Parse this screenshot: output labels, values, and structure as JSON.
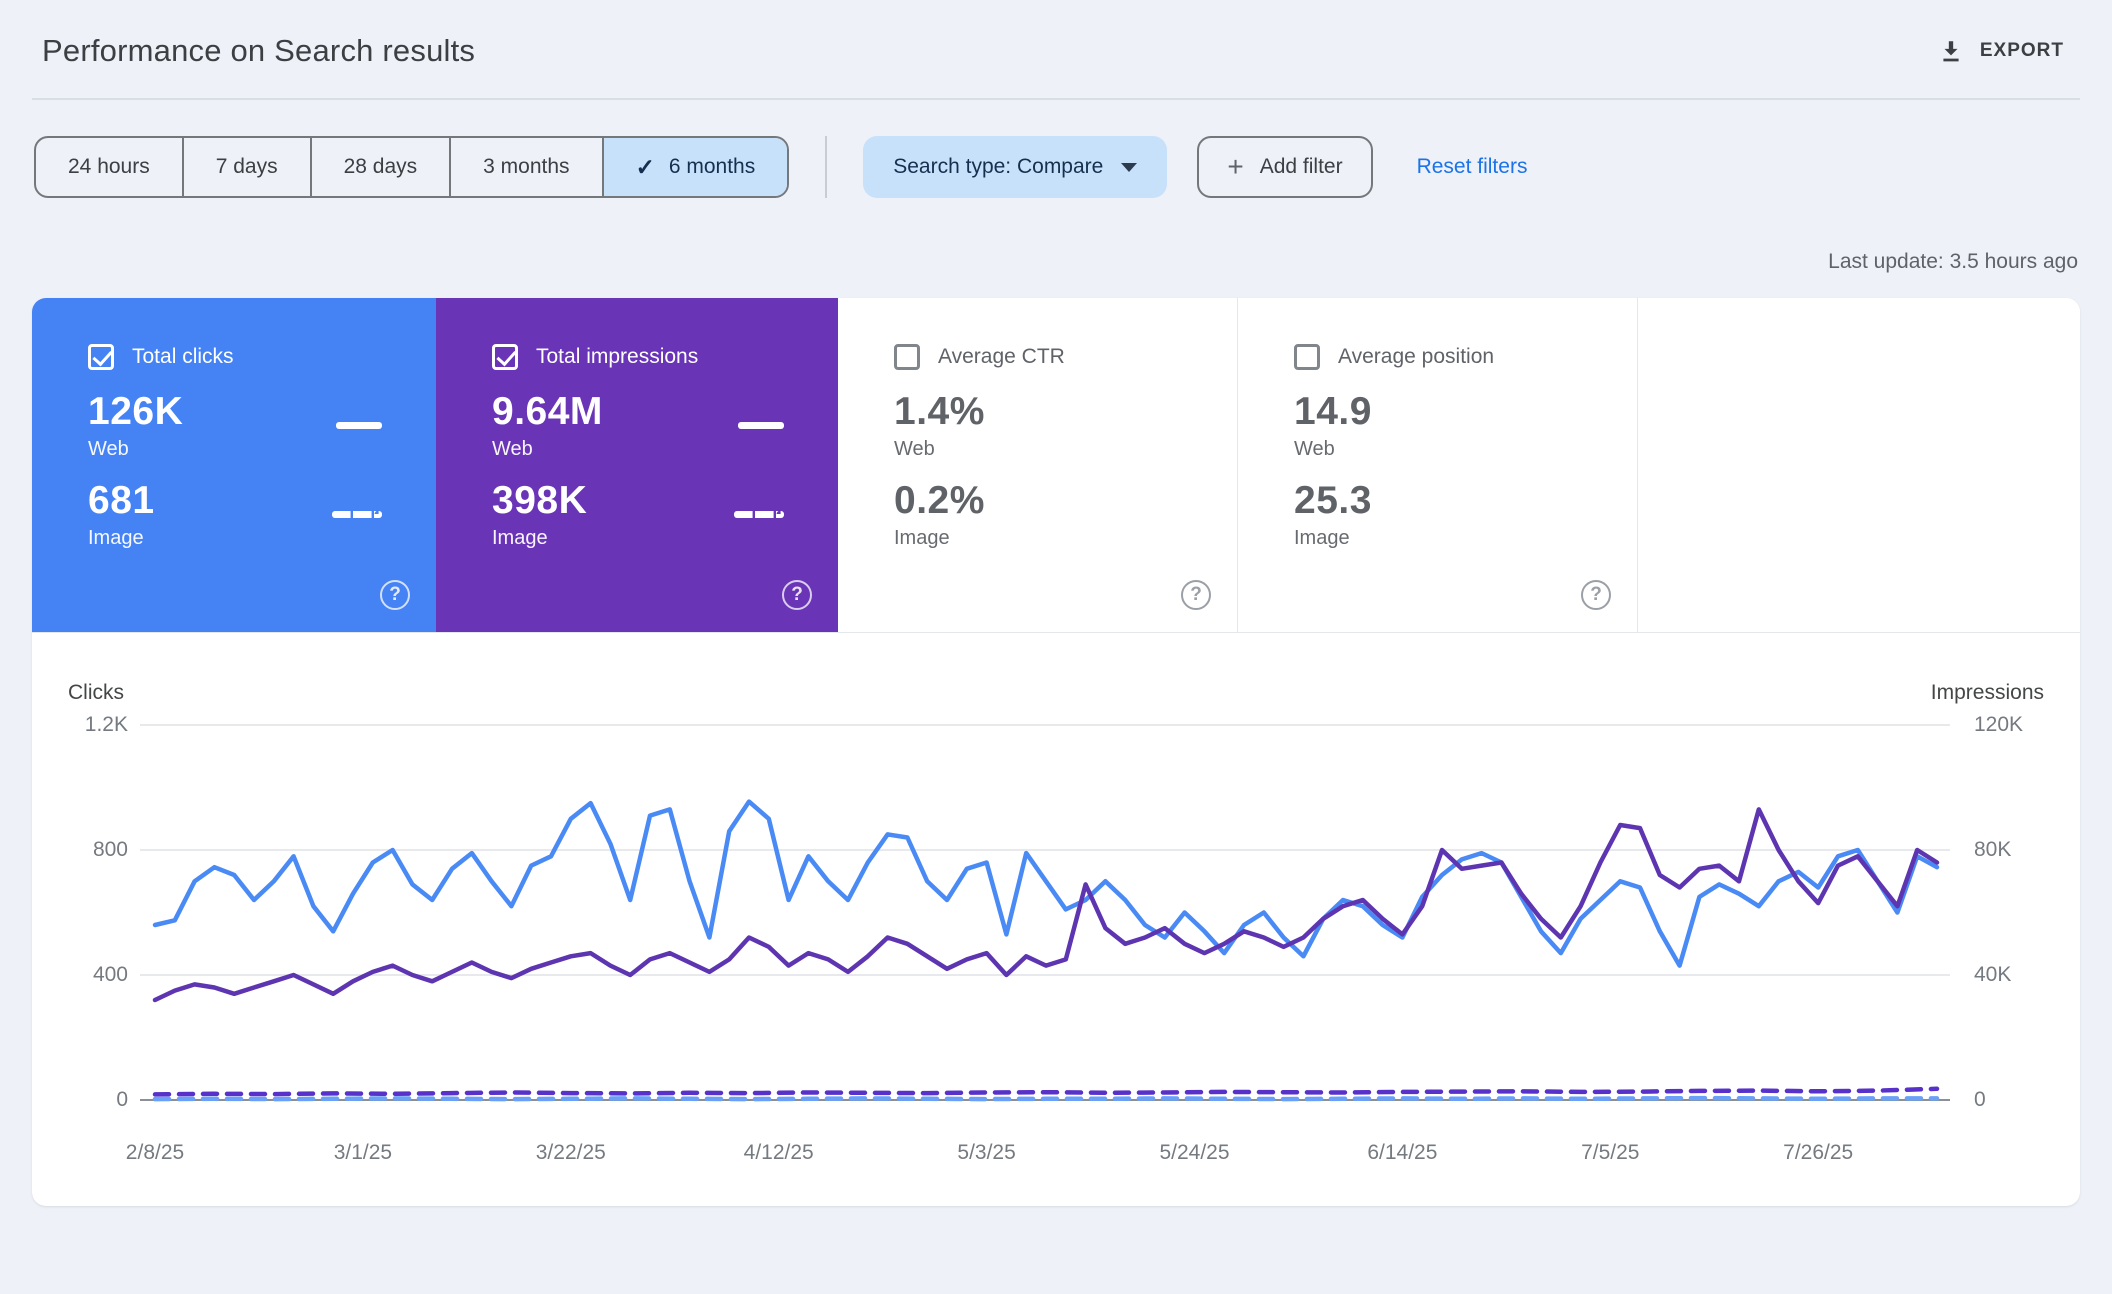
{
  "header": {
    "title": "Performance on Search results",
    "export_label": "EXPORT"
  },
  "filters": {
    "date_ranges": [
      "24 hours",
      "7 days",
      "28 days",
      "3 months",
      "6 months"
    ],
    "selected_range": "6 months",
    "search_type_label": "Search type: Compare",
    "add_filter_label": "Add filter",
    "reset_label": "Reset filters"
  },
  "meta": {
    "last_update": "Last update: 3.5 hours ago"
  },
  "icons": {
    "check": "✓",
    "plus": "+",
    "help": "?"
  },
  "colors": {
    "clicks_card": "#4583f5",
    "impressions_card": "#6a34b7",
    "web_clicks_line": "#4a8af5",
    "web_impressions_line": "#5e35b1",
    "image_clicks_line": "#6aa0f8",
    "image_impressions_line": "#5731c9",
    "selected_chip": "#c8e1fb",
    "link": "#1a73e8"
  },
  "cards": [
    {
      "label": "Total clicks",
      "checked": true,
      "web_value": "126K",
      "web_label": "Web",
      "image_value": "681",
      "image_label": "Image"
    },
    {
      "label": "Total impressions",
      "checked": true,
      "web_value": "9.64M",
      "web_label": "Web",
      "image_value": "398K",
      "image_label": "Image"
    },
    {
      "label": "Average CTR",
      "checked": false,
      "web_value": "1.4%",
      "web_label": "Web",
      "image_value": "0.2%",
      "image_label": "Image"
    },
    {
      "label": "Average position",
      "checked": false,
      "web_value": "14.9",
      "web_label": "Web",
      "image_value": "25.3",
      "image_label": "Image"
    }
  ],
  "chart_data": {
    "type": "line",
    "x_range": {
      "start": "2/8/25",
      "end": "8/7/25",
      "total_days": 180
    },
    "x_tick_labels": [
      "2/8/25",
      "3/1/25",
      "3/22/25",
      "4/12/25",
      "5/3/25",
      "5/24/25",
      "6/14/25",
      "7/5/25",
      "7/26/25"
    ],
    "x_tick_days": [
      0,
      21,
      42,
      63,
      84,
      105,
      126,
      147,
      168
    ],
    "left_axis": {
      "title": "Clicks",
      "tick_labels": [
        "0",
        "400",
        "800",
        "1.2K"
      ],
      "tick_values": [
        0,
        400,
        800,
        1200
      ],
      "max": 1200
    },
    "right_axis": {
      "title": "Impressions",
      "tick_labels": [
        "0",
        "40K",
        "80K",
        "120K"
      ],
      "tick_values": [
        0,
        40,
        80,
        120
      ],
      "max": 120,
      "units": "thousands"
    },
    "grid": true,
    "series": [
      {
        "name": "Web clicks",
        "axis": "left",
        "style": "solid",
        "color": "#4a8af5",
        "sample_interval_days": 2,
        "values": [
          560,
          575,
          700,
          745,
          720,
          640,
          700,
          780,
          620,
          540,
          660,
          760,
          800,
          690,
          640,
          740,
          790,
          700,
          620,
          750,
          780,
          900,
          950,
          820,
          640,
          910,
          930,
          700,
          520,
          860,
          955,
          900,
          640,
          780,
          700,
          640,
          760,
          850,
          840,
          700,
          640,
          740,
          760,
          530,
          790,
          700,
          610,
          640,
          700,
          640,
          560,
          520,
          600,
          540,
          470,
          560,
          600,
          520,
          460,
          580,
          640,
          620,
          560,
          520,
          650,
          720,
          770,
          790,
          760,
          650,
          540,
          470,
          580,
          640,
          700,
          680,
          540,
          430,
          650,
          690,
          660,
          620,
          700,
          730,
          680,
          780,
          800,
          700,
          600,
          780,
          745
        ]
      },
      {
        "name": "Web impressions",
        "axis": "right",
        "style": "solid",
        "color": "#5e35b1",
        "sample_interval_days": 2,
        "values": [
          32,
          35,
          37,
          36,
          34,
          36,
          38,
          40,
          37,
          34,
          38,
          41,
          43,
          40,
          38,
          41,
          44,
          41,
          39,
          42,
          44,
          46,
          47,
          43,
          40,
          45,
          47,
          44,
          41,
          45,
          52,
          49,
          43,
          47,
          45,
          41,
          46,
          52,
          50,
          46,
          42,
          45,
          47,
          40,
          46,
          43,
          45,
          69,
          55,
          50,
          52,
          55,
          50,
          47,
          50,
          54,
          52,
          49,
          52,
          58,
          62,
          64,
          58,
          53,
          62,
          80,
          74,
          75,
          76,
          66,
          58,
          52,
          62,
          76,
          88,
          87,
          72,
          68,
          74,
          75,
          70,
          93,
          80,
          70,
          63,
          75,
          78,
          70,
          62,
          80,
          76
        ]
      },
      {
        "name": "Image clicks",
        "axis": "left",
        "style": "dashed",
        "color": "#6aa0f8",
        "sample_interval_days": 6,
        "values": [
          3,
          4,
          3,
          4,
          5,
          4,
          3,
          4,
          5,
          4,
          3,
          4,
          5,
          4,
          3,
          4,
          4,
          5,
          4,
          3,
          4,
          5,
          4,
          5,
          4,
          5,
          6,
          5,
          4,
          5,
          5
        ]
      },
      {
        "name": "Image impressions",
        "axis": "right",
        "style": "dashed",
        "color": "#5731c9",
        "sample_interval_days": 6,
        "values": [
          1.8,
          2.0,
          1.9,
          2.1,
          2.0,
          2.2,
          2.4,
          2.2,
          2.1,
          2.3,
          2.2,
          2.4,
          2.3,
          2.2,
          2.4,
          2.5,
          2.3,
          2.4,
          2.6,
          2.5,
          2.4,
          2.6,
          2.7,
          2.8,
          2.6,
          2.7,
          2.9,
          3.0,
          2.8,
          3.0,
          3.6
        ]
      }
    ]
  }
}
